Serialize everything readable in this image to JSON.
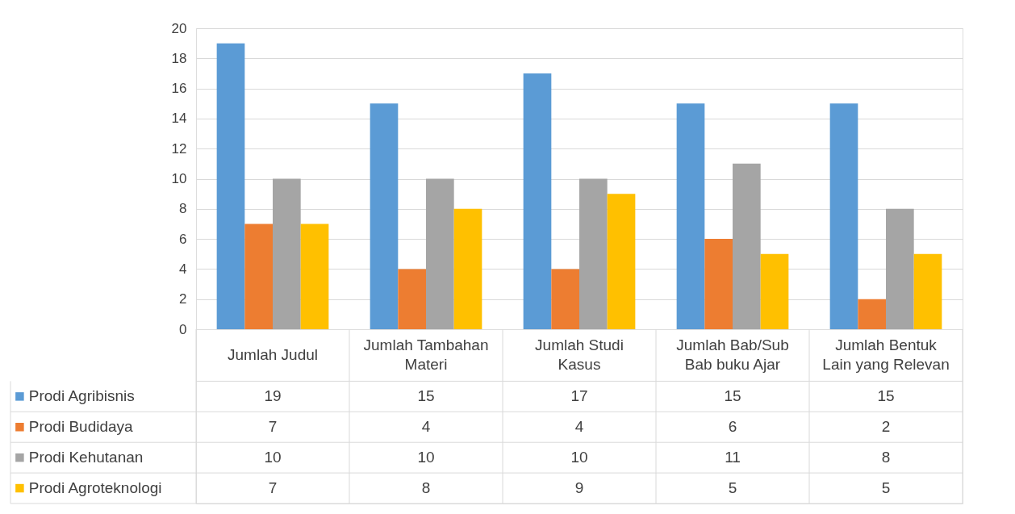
{
  "chart_data": {
    "type": "bar",
    "categories": [
      "Jumlah Judul",
      "Jumlah Tambahan Materi",
      "Jumlah Studi Kasus",
      "Jumlah Bab/Sub Bab buku Ajar",
      "Jumlah Bentuk Lain yang Relevan"
    ],
    "series": [
      {
        "name": "Prodi Agribisnis",
        "color": "#5b9bd5",
        "values": [
          19,
          15,
          17,
          15,
          15
        ]
      },
      {
        "name": "Prodi Budidaya",
        "color": "#ed7d31",
        "values": [
          7,
          4,
          4,
          6,
          2
        ]
      },
      {
        "name": "Prodi Kehutanan",
        "color": "#a5a5a5",
        "values": [
          10,
          10,
          10,
          11,
          8
        ]
      },
      {
        "name": "Prodi Agroteknologi",
        "color": "#ffc000",
        "values": [
          7,
          8,
          9,
          5,
          5
        ]
      }
    ],
    "ylim": [
      0,
      20
    ],
    "yticks": [
      0,
      2,
      4,
      6,
      8,
      10,
      12,
      14,
      16,
      18,
      20
    ],
    "grid": "y",
    "legend": "bottom left",
    "data_labels": true
  }
}
